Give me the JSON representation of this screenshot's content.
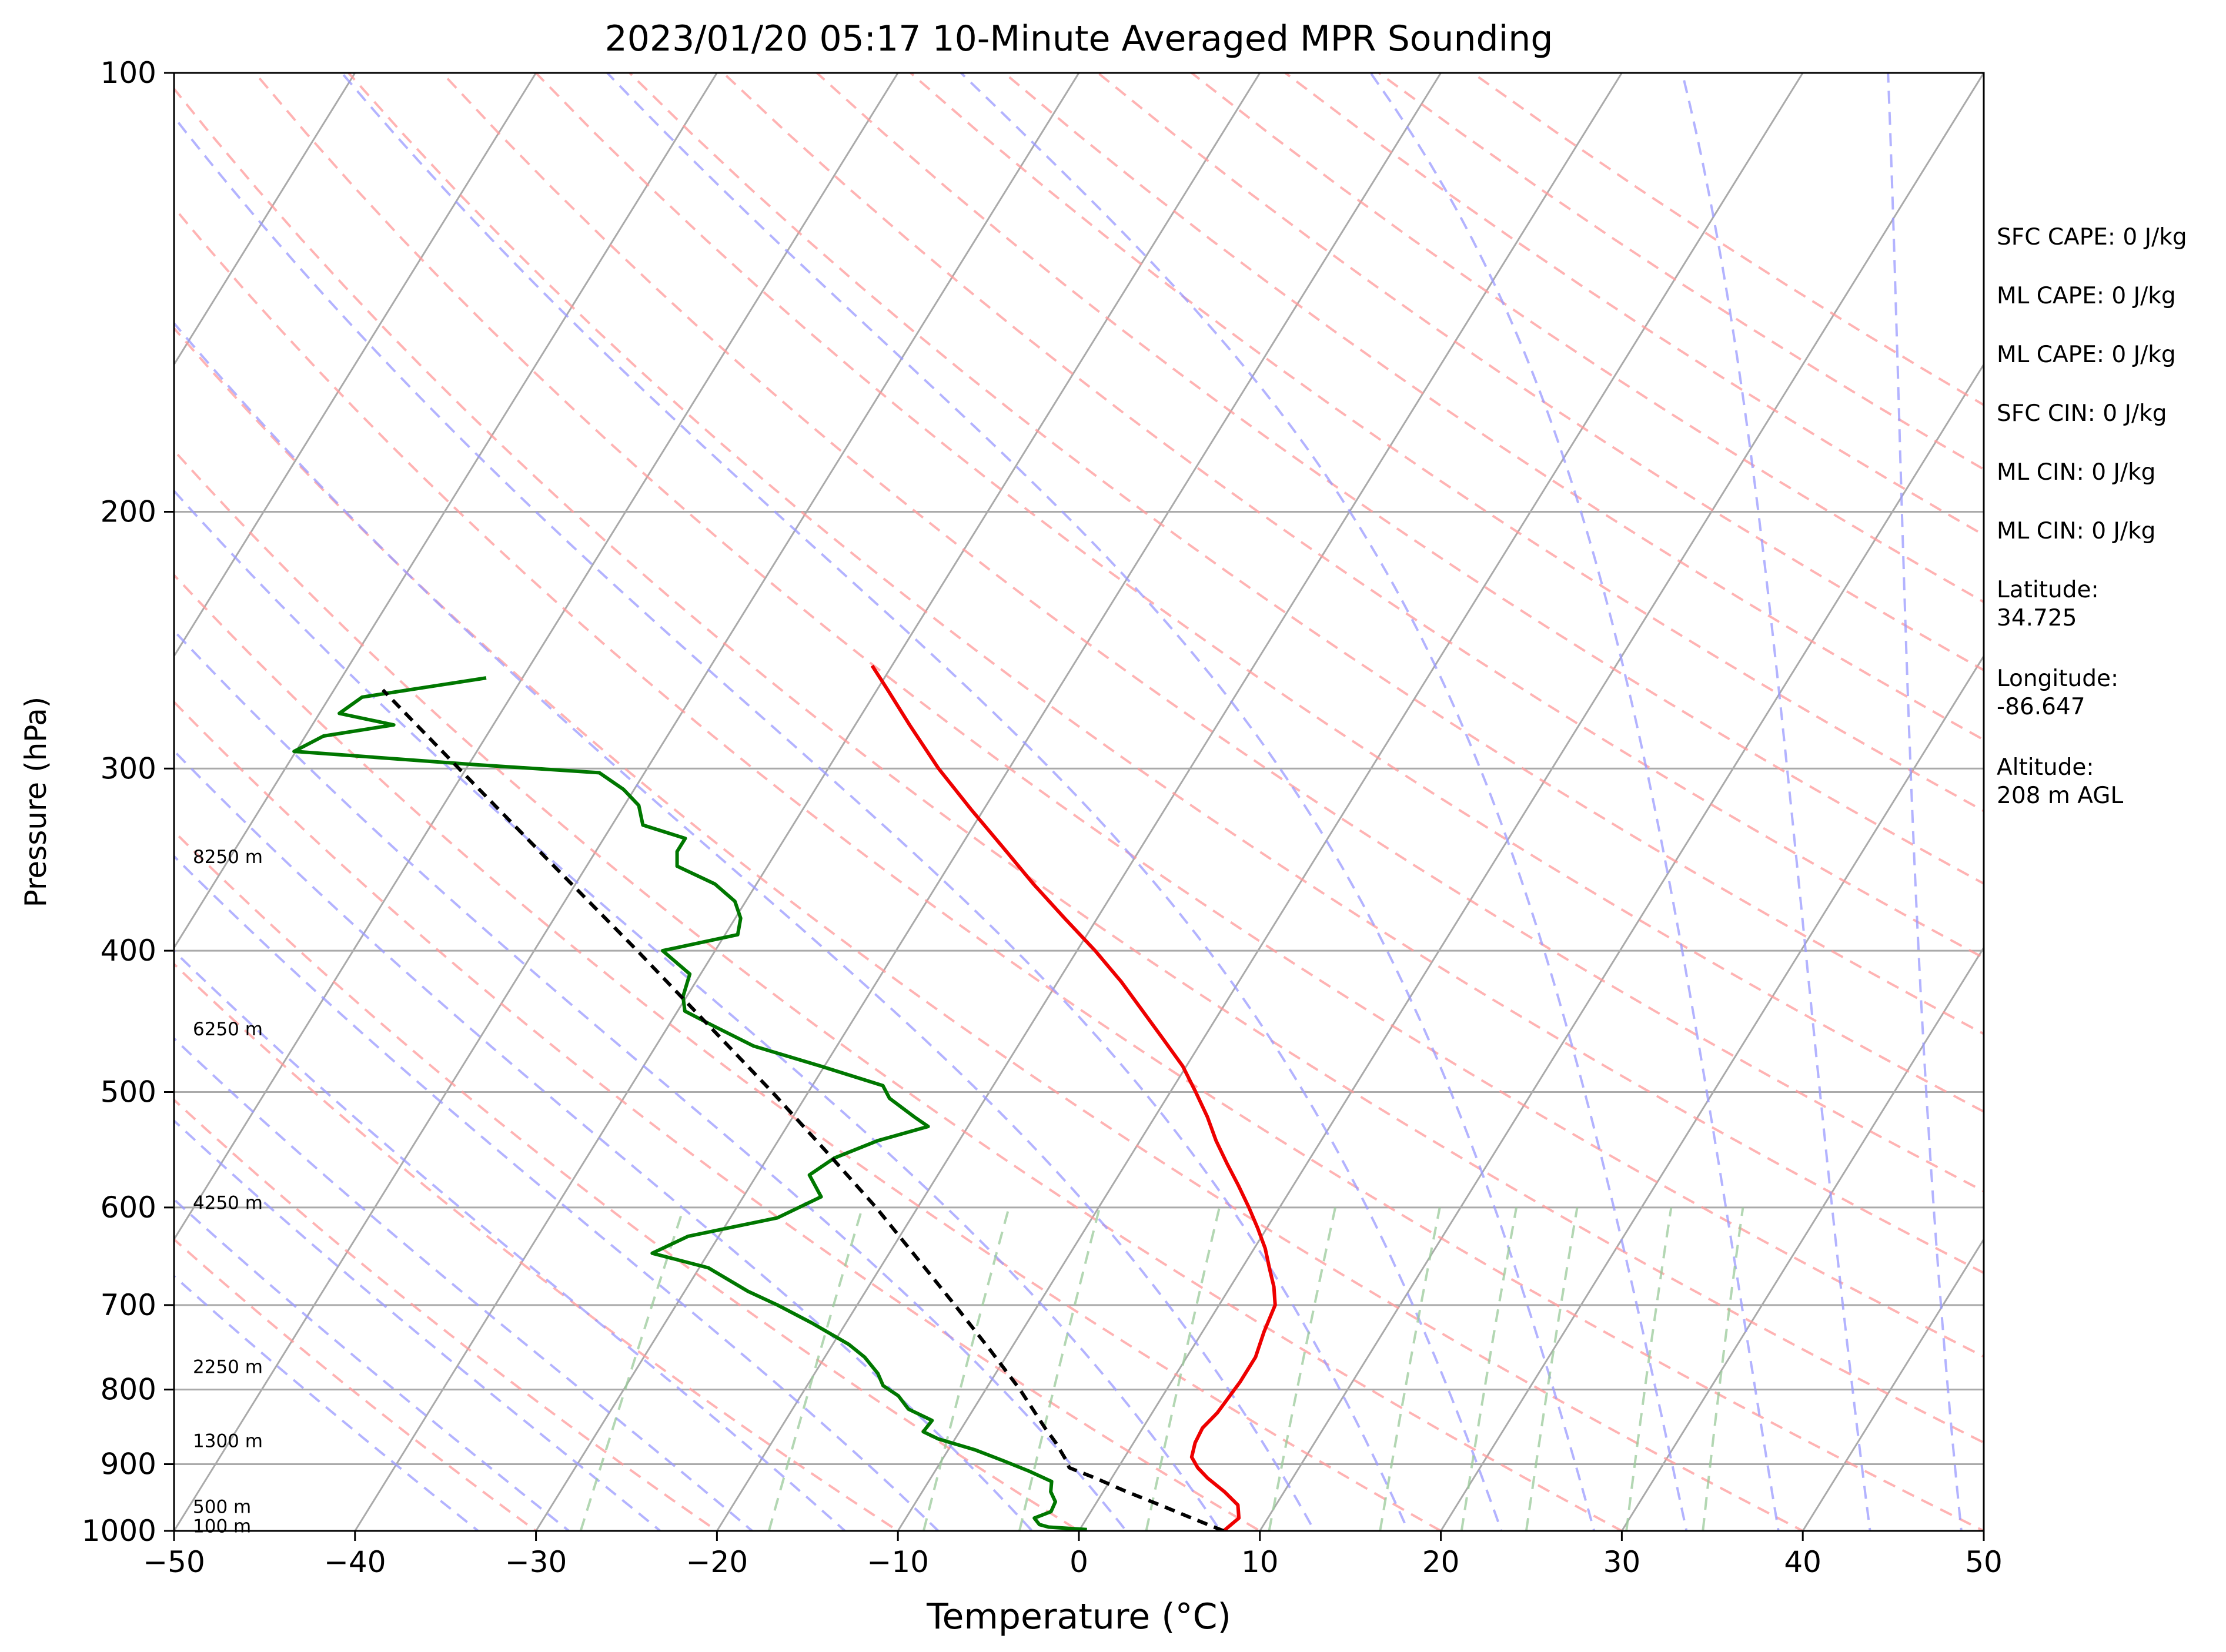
{
  "chart_data": {
    "type": "line",
    "subtype": "skew-T log-P sounding",
    "title": "2023/01/20 05:17 10-Minute Averaged MPR Sounding",
    "xlabel": "Temperature (°C)",
    "ylabel": "Pressure (hPa)",
    "xlim": [
      -50,
      50
    ],
    "ylim": [
      1000,
      100
    ],
    "yscale": "log",
    "x_ticks": [
      "−50",
      "−40",
      "−30",
      "−20",
      "−10",
      "0",
      "10",
      "20",
      "30",
      "40",
      "50"
    ],
    "y_ticks": [
      "100",
      "200",
      "300",
      "400",
      "500",
      "600",
      "700",
      "800",
      "900",
      "1000"
    ],
    "grid": true,
    "skew": 50,
    "series": [
      {
        "role": "temperature",
        "color": "#ee0000",
        "points": [
          [
            1000,
            8.0
          ],
          [
            980,
            8.4
          ],
          [
            960,
            7.9
          ],
          [
            940,
            6.7
          ],
          [
            920,
            5.3
          ],
          [
            905,
            4.4
          ],
          [
            890,
            3.7
          ],
          [
            870,
            3.4
          ],
          [
            850,
            3.3
          ],
          [
            830,
            3.6
          ],
          [
            810,
            3.7
          ],
          [
            790,
            3.8
          ],
          [
            760,
            3.8
          ],
          [
            730,
            3.4
          ],
          [
            700,
            3.1
          ],
          [
            680,
            2.4
          ],
          [
            660,
            1.5
          ],
          [
            640,
            0.6
          ],
          [
            620,
            -0.5
          ],
          [
            600,
            -1.7
          ],
          [
            580,
            -3.0
          ],
          [
            560,
            -4.4
          ],
          [
            540,
            -5.8
          ],
          [
            520,
            -7.1
          ],
          [
            500,
            -8.6
          ],
          [
            480,
            -10.2
          ],
          [
            460,
            -12.2
          ],
          [
            440,
            -14.3
          ],
          [
            420,
            -16.5
          ],
          [
            400,
            -19.0
          ],
          [
            380,
            -21.8
          ],
          [
            360,
            -24.7
          ],
          [
            340,
            -27.6
          ],
          [
            320,
            -30.7
          ],
          [
            300,
            -33.9
          ],
          [
            280,
            -37.0
          ],
          [
            265,
            -39.4
          ],
          [
            255,
            -41.1
          ]
        ]
      },
      {
        "role": "dewpoint",
        "color": "#007700",
        "points": [
          [
            998,
            0.4
          ],
          [
            994,
            -1.8
          ],
          [
            990,
            -2.4
          ],
          [
            980,
            -2.9
          ],
          [
            970,
            -2.2
          ],
          [
            955,
            -2.3
          ],
          [
            940,
            -2.9
          ],
          [
            925,
            -3.2
          ],
          [
            910,
            -4.8
          ],
          [
            895,
            -6.6
          ],
          [
            880,
            -8.5
          ],
          [
            865,
            -10.9
          ],
          [
            855,
            -12.0
          ],
          [
            840,
            -11.9
          ],
          [
            825,
            -13.6
          ],
          [
            808,
            -14.6
          ],
          [
            795,
            -15.8
          ],
          [
            780,
            -16.5
          ],
          [
            760,
            -17.8
          ],
          [
            745,
            -19.1
          ],
          [
            720,
            -21.9
          ],
          [
            700,
            -24.4
          ],
          [
            685,
            -26.5
          ],
          [
            660,
            -29.5
          ],
          [
            645,
            -33.1
          ],
          [
            628,
            -31.7
          ],
          [
            610,
            -27.4
          ],
          [
            590,
            -25.7
          ],
          [
            570,
            -27.1
          ],
          [
            555,
            -26.3
          ],
          [
            540,
            -24.5
          ],
          [
            528,
            -22.2
          ],
          [
            520,
            -23.3
          ],
          [
            505,
            -25.3
          ],
          [
            495,
            -26.1
          ],
          [
            480,
            -30.2
          ],
          [
            465,
            -34.6
          ],
          [
            450,
            -37.6
          ],
          [
            440,
            -39.6
          ],
          [
            430,
            -40.2
          ],
          [
            415,
            -40.6
          ],
          [
            400,
            -42.9
          ],
          [
            390,
            -39.3
          ],
          [
            380,
            -39.7
          ],
          [
            370,
            -40.6
          ],
          [
            360,
            -42.3
          ],
          [
            350,
            -45.0
          ],
          [
            342,
            -45.5
          ],
          [
            335,
            -45.5
          ],
          [
            328,
            -48.3
          ],
          [
            318,
            -49.2
          ],
          [
            310,
            -50.6
          ],
          [
            302,
            -52.5
          ],
          [
            298,
            -59.9
          ],
          [
            292,
            -70.1
          ],
          [
            285,
            -69.0
          ],
          [
            280,
            -65.5
          ],
          [
            275,
            -68.9
          ],
          [
            268,
            -68.2
          ],
          [
            260,
            -62.0
          ]
        ]
      },
      {
        "role": "parcel profile",
        "color": "#000000",
        "dashed": true,
        "points": [
          [
            1000,
            8.0
          ],
          [
            980,
            5.8
          ],
          [
            960,
            3.6
          ],
          [
            940,
            1.3
          ],
          [
            920,
            -0.9
          ],
          [
            905,
            -2.7
          ],
          [
            895,
            -3.1
          ],
          [
            870,
            -4.3
          ],
          [
            850,
            -5.4
          ],
          [
            800,
            -8.1
          ],
          [
            750,
            -11.2
          ],
          [
            700,
            -14.6
          ],
          [
            650,
            -18.3
          ],
          [
            600,
            -22.3
          ],
          [
            550,
            -26.9
          ],
          [
            500,
            -32.0
          ],
          [
            450,
            -37.8
          ],
          [
            400,
            -44.3
          ],
          [
            350,
            -51.8
          ],
          [
            300,
            -60.4
          ],
          [
            265,
            -67.3
          ]
        ]
      }
    ],
    "background_lines": {
      "dry_adiabats_color": "#ff9a9a",
      "moist_adiabats_color": "#9a9aff",
      "mixing_ratio_color": "#9ac99a",
      "isotherm_color": "#aaaaaa"
    },
    "height_labels": [
      {
        "pressure": 345,
        "label": "8250 m"
      },
      {
        "pressure": 453,
        "label": "6250 m"
      },
      {
        "pressure": 596,
        "label": "4250 m"
      },
      {
        "pressure": 772,
        "label": "2250 m"
      },
      {
        "pressure": 868,
        "label": "1300 m"
      },
      {
        "pressure": 963,
        "label": "500 m"
      },
      {
        "pressure": 993,
        "label": "100 m"
      }
    ],
    "annotations": [
      [
        "SFC CAPE: 0 J/kg"
      ],
      [
        "ML CAPE: 0 J/kg"
      ],
      [
        "ML CAPE: 0 J/kg"
      ],
      [
        "SFC CIN: 0 J/kg"
      ],
      [
        "ML CIN: 0 J/kg"
      ],
      [
        "ML CIN: 0 J/kg"
      ],
      [
        "Latitude:",
        "34.725"
      ],
      [
        "Longitude:",
        "-86.647"
      ],
      [
        "Altitude:",
        "208 m AGL"
      ]
    ]
  }
}
